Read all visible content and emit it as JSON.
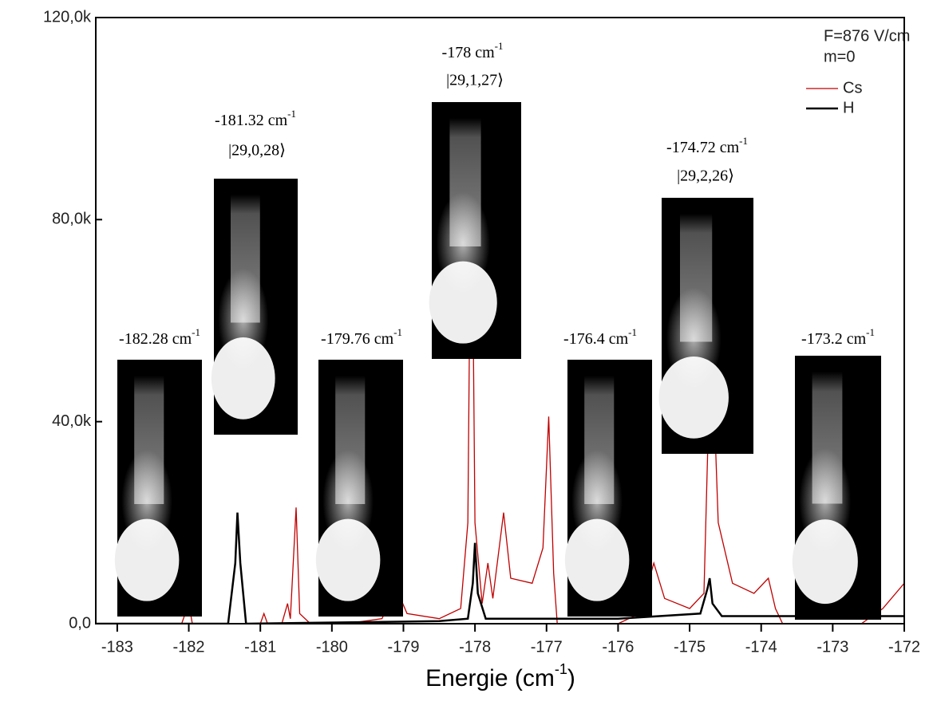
{
  "chart_data": {
    "type": "line",
    "xlabel": {
      "text": "Energie (cm",
      "sup": "-1",
      "suffix": ")"
    },
    "xlim": [
      -183.3,
      -172
    ],
    "xticks": [
      -183,
      -182,
      -181,
      -180,
      -179,
      -178,
      -177,
      -176,
      -175,
      -174,
      -173,
      -172
    ],
    "ylim": [
      0,
      120000
    ],
    "yticks": [
      {
        "value": 0,
        "label": "0,0"
      },
      {
        "value": 40000,
        "label": "40,0k"
      },
      {
        "value": 80000,
        "label": "80,0k"
      },
      {
        "value": 120000,
        "label": "120,0k"
      }
    ],
    "legend_notes": [
      "F=876 V/cm",
      "m=0"
    ],
    "series": [
      {
        "name": "Cs",
        "color": "#c00000",
        "x": [
          -183.3,
          -182.1,
          -182.0,
          -181.95,
          -181.0,
          -180.95,
          -180.9,
          -180.7,
          -180.62,
          -180.58,
          -180.5,
          -180.45,
          -180.3,
          -179.8,
          -179.3,
          -179.1,
          -178.95,
          -178.5,
          -178.2,
          -178.1,
          -178.05,
          -178.0,
          -177.9,
          -177.82,
          -177.75,
          -177.6,
          -177.5,
          -177.2,
          -177.05,
          -176.97,
          -176.9,
          -176.85,
          -176.0,
          -175.7,
          -175.5,
          -175.35,
          -175.0,
          -174.8,
          -174.7,
          -174.6,
          -174.4,
          -174.1,
          -173.9,
          -173.8,
          -173.7,
          -172.6,
          -172.3,
          -172.0
        ],
        "values": [
          0,
          0,
          4000,
          0,
          0,
          2000,
          0,
          0,
          4000,
          1000,
          23000,
          2000,
          0,
          0,
          1000,
          7000,
          2000,
          1000,
          3000,
          20000,
          100000,
          20000,
          4000,
          12000,
          5000,
          22000,
          9000,
          8000,
          15000,
          41000,
          10000,
          0,
          0,
          2000,
          12000,
          5000,
          3000,
          6000,
          60000,
          20000,
          8000,
          6000,
          9000,
          3000,
          0,
          0,
          3000,
          8000
        ]
      },
      {
        "name": "H",
        "color": "#000000",
        "x": [
          -183.3,
          -181.45,
          -181.35,
          -181.32,
          -181.28,
          -181.2,
          -178.5,
          -178.1,
          -178.03,
          -178.0,
          -177.96,
          -177.85,
          -176.0,
          -174.85,
          -174.75,
          -174.72,
          -174.68,
          -174.55,
          -172.0
        ],
        "values": [
          0,
          0,
          12000,
          22000,
          12000,
          0,
          500,
          1000,
          8000,
          16000,
          6000,
          1000,
          1000,
          2000,
          7000,
          9000,
          4000,
          1500,
          1500
        ]
      }
    ],
    "annotations": [
      {
        "text": "-182.28 cm",
        "sup": "-1"
      },
      {
        "text": "-181.32 cm",
        "sup": "-1",
        "state": "|29,0,28⟩"
      },
      {
        "text": "-179.76 cm",
        "sup": "-1"
      },
      {
        "text": "-178 cm",
        "sup": "-1",
        "state": "|29,1,27⟩"
      },
      {
        "text": "-176.4 cm",
        "sup": "-1"
      },
      {
        "text": "-174.72 cm",
        "sup": "-1",
        "state": "|29,2,26⟩"
      },
      {
        "text": "-173.2 cm",
        "sup": "-1"
      }
    ]
  }
}
